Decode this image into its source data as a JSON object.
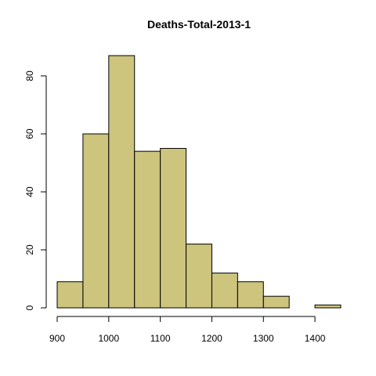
{
  "chart_data": {
    "type": "bar",
    "title": "Deaths-Total-2013-1",
    "xlabel": "",
    "ylabel": "",
    "bins": [
      {
        "from": 900,
        "to": 950,
        "count": 9
      },
      {
        "from": 950,
        "to": 1000,
        "count": 60
      },
      {
        "from": 1000,
        "to": 1050,
        "count": 87
      },
      {
        "from": 1050,
        "to": 1100,
        "count": 54
      },
      {
        "from": 1100,
        "to": 1150,
        "count": 55
      },
      {
        "from": 1150,
        "to": 1200,
        "count": 22
      },
      {
        "from": 1200,
        "to": 1250,
        "count": 12
      },
      {
        "from": 1250,
        "to": 1300,
        "count": 9
      },
      {
        "from": 1300,
        "to": 1350,
        "count": 4
      },
      {
        "from": 1350,
        "to": 1400,
        "count": 0
      },
      {
        "from": 1400,
        "to": 1450,
        "count": 1
      }
    ],
    "xlim": [
      900,
      1450
    ],
    "ylim": [
      0,
      87
    ],
    "x_ticks": [
      900,
      1000,
      1100,
      1200,
      1300,
      1400
    ],
    "x_tick_labels": [
      "900",
      "1000",
      "1100",
      "1200",
      "1300",
      "1400"
    ],
    "y_ticks": [
      0,
      20,
      40,
      60,
      80
    ],
    "y_tick_labels": [
      "0",
      "20",
      "40",
      "60",
      "80"
    ],
    "grid": false,
    "bar_color": "#cdc47d",
    "edge_color": "#000000"
  }
}
